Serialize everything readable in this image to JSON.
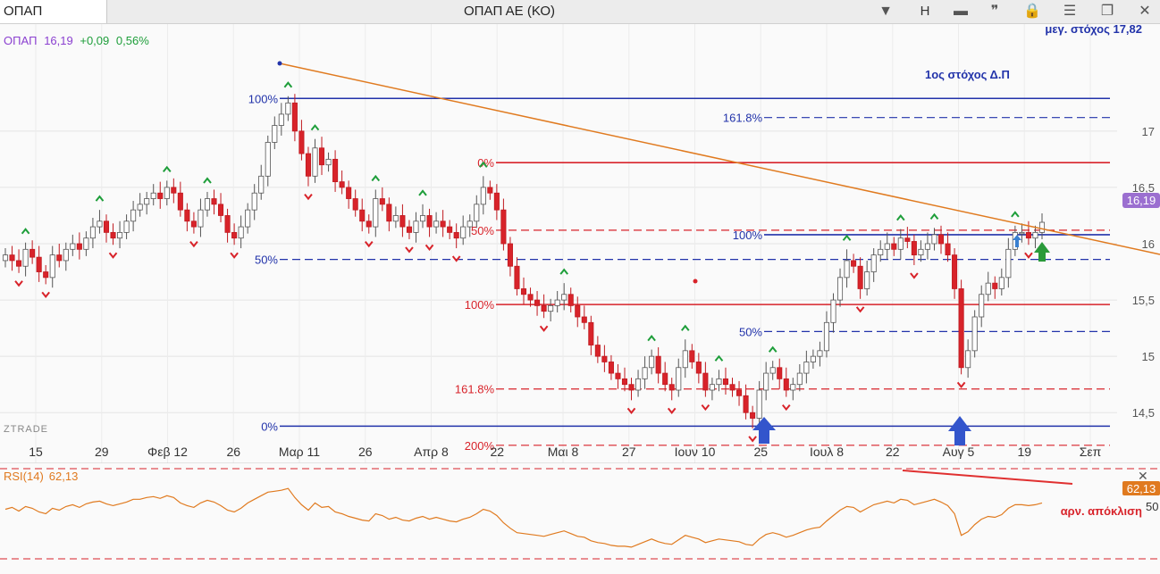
{
  "toolbar": {
    "symbol_input": "ΟΠΑΠ",
    "title": "ΟΠΑΠ ΑΕ (ΚΟ)",
    "period_label": "H",
    "dropdown_glyph": "▼",
    "bar_glyph": "▬",
    "quote_glyph": "❞",
    "lock_glyph": "🔒",
    "menu_glyph": "☰",
    "restore_glyph": "❐",
    "close_glyph": "✕"
  },
  "legend": {
    "name": "ΟΠΑΠ",
    "price": "16,19",
    "change": "+0,09",
    "change_pct": "0,56%"
  },
  "watermark": "ZTRADE",
  "annotations": {
    "max_target": "μεγ. στόχος 17,82",
    "first_target": "1ος στόχος Δ.Π",
    "divergence": "αρν. απόκλιση"
  },
  "colors": {
    "up": "#ffffff",
    "down": "#d8232a",
    "fib_blue": "#2233aa",
    "fib_red": "#d8232a",
    "trendline": "#e07a1f",
    "rsi": "#e07a1f",
    "signal_up": "#1e9e3a",
    "arrow_blue": "#3355cc",
    "arrow_green": "#2a9a3a"
  },
  "chart_data": {
    "type": "candlestick",
    "price_axis": {
      "min": 14.05,
      "max": 17.95,
      "ticks": [
        "14,5",
        "15",
        "15,5",
        "16",
        "16,5",
        "17"
      ],
      "tick_values": [
        14.5,
        15,
        15.5,
        16,
        16.5,
        17
      ],
      "last_price_label": "16,19",
      "last_price": 16.19
    },
    "x_labels": [
      "15",
      "29",
      "Φεβ 12",
      "26",
      "Μαρ 11",
      "26",
      "Απρ 8",
      "22",
      "Μαι 8",
      "27",
      "Ιουν 10",
      "25",
      "Ιουλ 8",
      "22",
      "Αυγ 5",
      "19",
      "Σεπ"
    ],
    "fib_levels": [
      {
        "label": "100%",
        "price": 17.29,
        "color": "blue",
        "style": "solid"
      },
      {
        "label": "161.8%",
        "price": 17.12,
        "color": "blue",
        "style": "dashed"
      },
      {
        "label": "0%",
        "price": 16.72,
        "color": "red",
        "style": "solid"
      },
      {
        "label": "50%",
        "price": 16.12,
        "color": "red",
        "style": "dashed"
      },
      {
        "label": "100%",
        "price": 16.08,
        "color": "blue",
        "style": "solid"
      },
      {
        "label": "50%",
        "price": 15.86,
        "color": "blue",
        "style": "dashed"
      },
      {
        "label": "100%",
        "price": 15.46,
        "color": "red",
        "style": "solid"
      },
      {
        "label": "50%",
        "price": 15.22,
        "color": "blue",
        "style": "dashed"
      },
      {
        "label": "161.8%",
        "price": 14.71,
        "color": "red",
        "style": "dashed"
      },
      {
        "label": "0%",
        "price": 14.38,
        "color": "blue",
        "style": "solid"
      },
      {
        "label": "200%",
        "price": 14.21,
        "color": "red",
        "style": "dashed"
      }
    ],
    "closes": [
      15.9,
      15.85,
      15.8,
      15.95,
      15.88,
      15.75,
      15.7,
      15.9,
      15.85,
      15.95,
      16.0,
      15.95,
      16.05,
      16.15,
      16.2,
      16.1,
      16.05,
      16.1,
      16.2,
      16.3,
      16.35,
      16.4,
      16.45,
      16.4,
      16.5,
      16.45,
      16.3,
      16.2,
      16.15,
      16.3,
      16.4,
      16.35,
      16.25,
      16.1,
      16.05,
      16.15,
      16.3,
      16.45,
      16.6,
      16.9,
      17.05,
      17.15,
      17.25,
      17.0,
      16.8,
      16.6,
      16.85,
      16.7,
      16.75,
      16.55,
      16.5,
      16.4,
      16.3,
      16.2,
      16.15,
      16.4,
      16.35,
      16.2,
      16.25,
      16.15,
      16.1,
      16.2,
      16.25,
      16.15,
      16.2,
      16.15,
      16.1,
      16.05,
      16.15,
      16.2,
      16.35,
      16.5,
      16.45,
      16.3,
      16.0,
      15.8,
      15.6,
      15.55,
      15.5,
      15.45,
      15.4,
      15.45,
      15.5,
      15.55,
      15.45,
      15.35,
      15.3,
      15.1,
      15.0,
      14.95,
      14.85,
      14.8,
      14.75,
      14.7,
      14.8,
      14.9,
      15.0,
      14.85,
      14.75,
      14.7,
      14.9,
      15.05,
      14.95,
      14.85,
      14.7,
      14.75,
      14.8,
      14.75,
      14.7,
      14.65,
      14.5,
      14.45,
      14.7,
      14.85,
      14.9,
      14.8,
      14.7,
      14.75,
      14.85,
      14.95,
      15.0,
      15.05,
      15.3,
      15.5,
      15.7,
      15.85,
      15.8,
      15.6,
      15.75,
      15.9,
      15.95,
      16.0,
      15.95,
      16.05,
      16.02,
      15.9,
      15.95,
      16.0,
      16.08,
      16.0,
      15.9,
      15.6,
      14.9,
      15.05,
      15.35,
      15.55,
      15.65,
      15.6,
      15.7,
      15.95,
      16.1,
      16.1,
      16.05,
      16.1,
      16.19
    ],
    "rsi": {
      "label": "RSI(14)",
      "value": "62,13",
      "level_label": "50",
      "values": [
        55,
        57,
        53,
        58,
        56,
        52,
        50,
        56,
        54,
        58,
        60,
        57,
        61,
        63,
        64,
        61,
        59,
        61,
        63,
        66,
        66,
        68,
        69,
        67,
        70,
        68,
        62,
        59,
        57,
        62,
        65,
        63,
        59,
        54,
        52,
        56,
        62,
        66,
        70,
        74,
        75,
        76,
        78,
        68,
        60,
        54,
        62,
        57,
        58,
        52,
        50,
        47,
        45,
        43,
        42,
        50,
        48,
        44,
        46,
        43,
        42,
        45,
        47,
        44,
        46,
        44,
        42,
        41,
        44,
        46,
        50,
        55,
        53,
        48,
        40,
        34,
        29,
        28,
        27,
        26,
        25,
        27,
        29,
        31,
        28,
        25,
        24,
        20,
        18,
        17,
        15,
        14,
        14,
        13,
        16,
        19,
        22,
        19,
        17,
        16,
        21,
        26,
        24,
        22,
        18,
        20,
        22,
        21,
        20,
        19,
        16,
        15,
        22,
        27,
        29,
        27,
        24,
        26,
        29,
        32,
        34,
        35,
        42,
        48,
        54,
        58,
        57,
        52,
        56,
        60,
        62,
        64,
        62,
        66,
        65,
        60,
        62,
        64,
        66,
        63,
        59,
        50,
        26,
        30,
        38,
        44,
        47,
        46,
        49,
        56,
        60,
        60,
        59,
        60,
        62
      ]
    }
  }
}
